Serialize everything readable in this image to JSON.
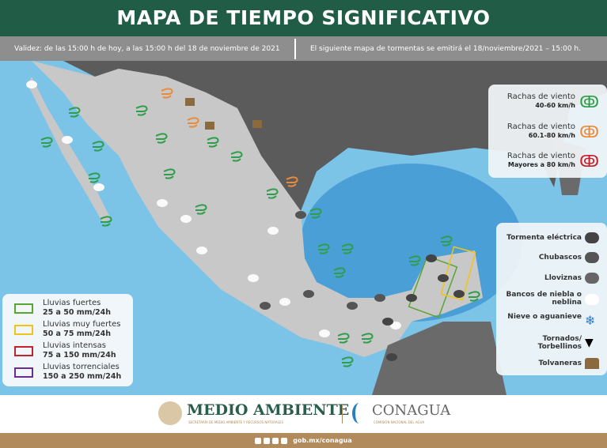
{
  "header": {
    "title": "MAPA DE TIEMPO SIGNIFICATIVO"
  },
  "validity": {
    "left": "Validez: de las 15:00  h de hoy, a las 15:00  h del 18 de noviembre de 2021",
    "right": "El siguiente mapa de tormentas se emitirá el 18/noviembre/2021 – 15:00  h."
  },
  "wind_legend": [
    {
      "label": "Rachas de viento",
      "range": "40-60 km/h",
      "color": "#2e9e4a",
      "icon": "wind-icon"
    },
    {
      "label": "Rachas de viento",
      "range": "60.1-80 km/h",
      "color": "#e98b3c",
      "icon": "wind-icon"
    },
    {
      "label": "Rachas de viento",
      "range": "Mayores a 80 km/h",
      "color": "#c8202b",
      "icon": "wind-icon"
    }
  ],
  "symbol_legend": [
    {
      "label": "Tormenta eléctrica",
      "icon": "storm-cloud-lightning-icon"
    },
    {
      "label": "Chubascos",
      "icon": "showers-cloud-icon"
    },
    {
      "label": "Lloviznas",
      "icon": "drizzle-cloud-icon"
    },
    {
      "label": "Bancos de niebla o neblina",
      "icon": "fog-cloud-icon"
    },
    {
      "label": "Nieve o aguanieve",
      "icon": "snowflake-icon"
    },
    {
      "label": "Tornados/ Torbellinos",
      "icon": "tornado-icon"
    },
    {
      "label": "Tolvaneras",
      "icon": "dust-storm-icon"
    }
  ],
  "rain_legend": [
    {
      "label": "Lluvias fuertes",
      "range": "25 a 50 mm/24h",
      "color": "#5aa532"
    },
    {
      "label": "Lluvias muy fuertes",
      "range": "50 a 75 mm/24h",
      "color": "#f0c419"
    },
    {
      "label": "Lluvias intensas",
      "range": "75 a 150 mm/24h",
      "color": "#c4232b"
    },
    {
      "label": "Lluvias torrenciales",
      "range": "150 a 250 mm/24h",
      "color": "#6a2c91"
    }
  ],
  "footer": {
    "semarnat": "MEDIO AMBIENTE",
    "semarnat_sub": "SECRETARÍA DE MEDIO AMBIENTE Y RECURSOS NATURALES",
    "conagua": "CONAGUA",
    "conagua_sub": "COMISIÓN NACIONAL DEL AGUA",
    "url": "gob.mx/conagua"
  }
}
